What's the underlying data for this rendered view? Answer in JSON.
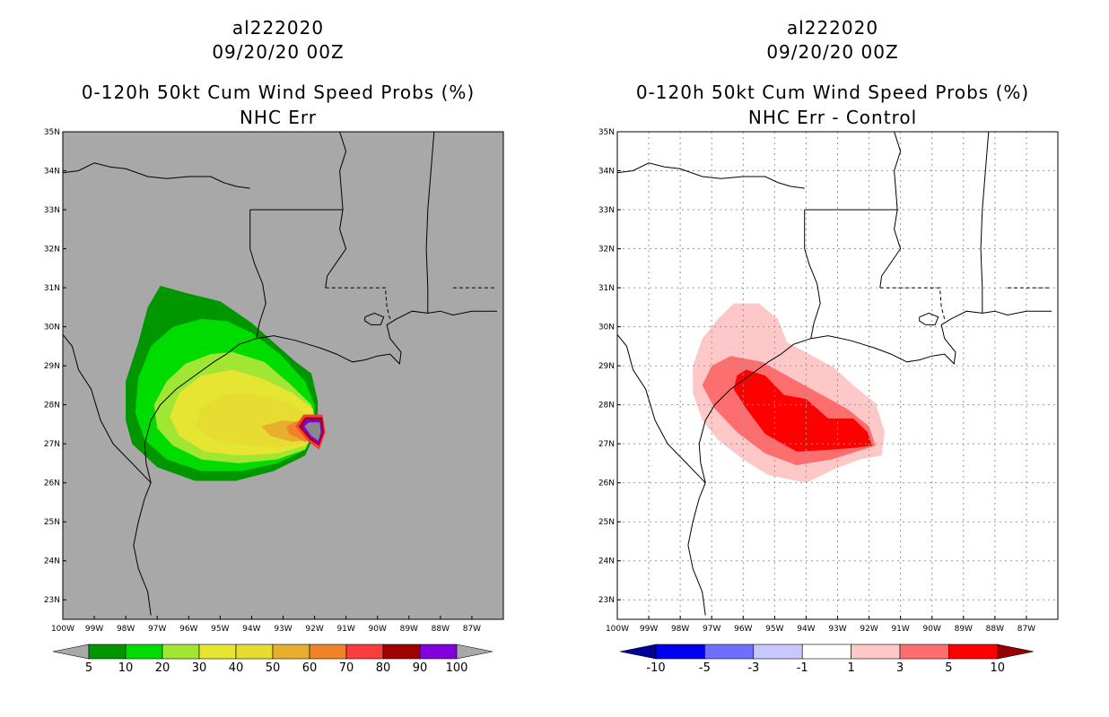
{
  "left_panel": {
    "storm_id": "al222020",
    "datetime": "09/20/20 00Z",
    "title": "0-120h 50kt Cum Wind Speed Probs (%)",
    "subtitle": "NHC Err",
    "background_color": "#a8a8a8",
    "colorbar": {
      "labels": [
        "5",
        "10",
        "20",
        "30",
        "40",
        "50",
        "60",
        "70",
        "80",
        "90",
        "100"
      ],
      "colors": [
        "#009600",
        "#00dc00",
        "#a0e632",
        "#e6e632",
        "#e6dc32",
        "#e6af2d",
        "#f08228",
        "#fa3c3c",
        "#a00000",
        "#8200dc"
      ],
      "end_colors": [
        "#a8a8a8",
        "#a8a8a8"
      ]
    }
  },
  "right_panel": {
    "storm_id": "al222020",
    "datetime": "09/20/20 00Z",
    "title": "0-120h 50kt Cum Wind Speed Probs (%)",
    "subtitle": "NHC Err - Control",
    "background_color": "#ffffff",
    "colorbar": {
      "labels": [
        "-10",
        "-5",
        "-3",
        "-1",
        "1",
        "3",
        "5",
        "10"
      ],
      "colors": [
        "#0000f0",
        "#6e6eff",
        "#c8c8ff",
        "#ffffff",
        "#ffc8c8",
        "#ff6e6e",
        "#ff0000"
      ],
      "end_colors": [
        "#000096",
        "#960000"
      ]
    }
  },
  "axes": {
    "lat_labels": [
      "35N",
      "34N",
      "33N",
      "32N",
      "31N",
      "30N",
      "29N",
      "28N",
      "27N",
      "26N",
      "25N",
      "24N",
      "23N"
    ],
    "lon_labels": [
      "100W",
      "99W",
      "98W",
      "97W",
      "96W",
      "95W",
      "94W",
      "93W",
      "92W",
      "91W",
      "90W",
      "89W",
      "88W",
      "87W"
    ]
  },
  "map_data": {
    "lat_range": [
      22.5,
      35
    ],
    "lon_range": [
      -100,
      -86
    ],
    "wind_prob_contours": [
      {
        "level": "5",
        "ring": [
          [
            -96.9,
            31.05
          ],
          [
            -96.0,
            30.85
          ],
          [
            -95.0,
            30.65
          ],
          [
            -94.0,
            30.1
          ],
          [
            -93.3,
            29.6
          ],
          [
            -92.6,
            29.1
          ],
          [
            -92.1,
            28.8
          ],
          [
            -91.9,
            28.1
          ],
          [
            -91.9,
            27.4
          ],
          [
            -92.3,
            26.7
          ],
          [
            -93.3,
            26.3
          ],
          [
            -94.5,
            26.05
          ],
          [
            -95.8,
            26.05
          ],
          [
            -97.0,
            26.4
          ],
          [
            -97.8,
            27.0
          ],
          [
            -98.0,
            27.6
          ],
          [
            -98.0,
            28.6
          ],
          [
            -97.6,
            29.6
          ],
          [
            -97.3,
            30.5
          ]
        ]
      },
      {
        "level": "10",
        "ring": [
          [
            -95.6,
            30.2
          ],
          [
            -94.8,
            30.15
          ],
          [
            -94.0,
            29.85
          ],
          [
            -93.1,
            29.3
          ],
          [
            -92.3,
            28.6
          ],
          [
            -92.0,
            28.0
          ],
          [
            -92.0,
            27.35
          ],
          [
            -92.4,
            26.8
          ],
          [
            -93.2,
            26.5
          ],
          [
            -94.3,
            26.3
          ],
          [
            -95.6,
            26.3
          ],
          [
            -96.7,
            26.6
          ],
          [
            -97.4,
            27.1
          ],
          [
            -97.7,
            27.8
          ],
          [
            -97.6,
            28.7
          ],
          [
            -97.2,
            29.5
          ],
          [
            -96.5,
            30.0
          ]
        ]
      },
      {
        "level": "20",
        "ring": [
          [
            -94.6,
            29.35
          ],
          [
            -93.6,
            29.1
          ],
          [
            -92.8,
            28.55
          ],
          [
            -92.1,
            28.0
          ],
          [
            -91.95,
            27.4
          ],
          [
            -92.3,
            26.85
          ],
          [
            -93.2,
            26.6
          ],
          [
            -94.4,
            26.5
          ],
          [
            -95.6,
            26.6
          ],
          [
            -96.5,
            26.95
          ],
          [
            -97.0,
            27.4
          ],
          [
            -97.1,
            28.0
          ],
          [
            -96.7,
            28.6
          ],
          [
            -96.1,
            29.05
          ],
          [
            -95.3,
            29.3
          ]
        ]
      },
      {
        "level": "30",
        "ring": [
          [
            -94.6,
            28.9
          ],
          [
            -93.6,
            28.65
          ],
          [
            -92.7,
            28.3
          ],
          [
            -92.05,
            27.9
          ],
          [
            -91.95,
            27.35
          ],
          [
            -92.3,
            26.95
          ],
          [
            -93.2,
            26.75
          ],
          [
            -94.4,
            26.7
          ],
          [
            -95.5,
            26.8
          ],
          [
            -96.3,
            27.2
          ],
          [
            -96.6,
            27.7
          ],
          [
            -96.3,
            28.3
          ],
          [
            -95.6,
            28.75
          ]
        ]
      },
      {
        "level": "40",
        "ring": [
          [
            -94.3,
            28.3
          ],
          [
            -93.4,
            28.2
          ],
          [
            -92.6,
            27.95
          ],
          [
            -92.05,
            27.65
          ],
          [
            -92.0,
            27.3
          ],
          [
            -92.3,
            27.0
          ],
          [
            -93.1,
            26.9
          ],
          [
            -94.2,
            26.95
          ],
          [
            -95.2,
            27.1
          ],
          [
            -95.8,
            27.45
          ],
          [
            -95.6,
            27.95
          ],
          [
            -94.9,
            28.25
          ]
        ]
      },
      {
        "level": "50",
        "ring": [
          [
            -93.0,
            27.6
          ],
          [
            -92.4,
            27.55
          ],
          [
            -92.05,
            27.4
          ],
          [
            -92.2,
            27.1
          ],
          [
            -92.7,
            27.05
          ],
          [
            -93.4,
            27.2
          ],
          [
            -93.7,
            27.45
          ]
        ]
      },
      {
        "level": "60",
        "ring": [
          [
            -92.5,
            27.6
          ],
          [
            -92.05,
            27.5
          ],
          [
            -91.95,
            27.2
          ],
          [
            -92.3,
            27.05
          ],
          [
            -92.8,
            27.25
          ],
          [
            -92.9,
            27.45
          ]
        ]
      },
      {
        "level": "70",
        "ring": [
          [
            -92.35,
            27.75
          ],
          [
            -91.75,
            27.75
          ],
          [
            -91.65,
            27.3
          ],
          [
            -91.85,
            26.85
          ],
          [
            -92.2,
            27.05
          ],
          [
            -92.6,
            27.45
          ]
        ]
      },
      {
        "level": "80",
        "ring": [
          [
            -92.3,
            27.68
          ],
          [
            -91.75,
            27.68
          ],
          [
            -91.7,
            27.3
          ],
          [
            -91.85,
            26.95
          ],
          [
            -92.15,
            27.1
          ],
          [
            -92.5,
            27.45
          ]
        ]
      },
      {
        "level": "90",
        "ring": [
          [
            -92.25,
            27.62
          ],
          [
            -91.8,
            27.62
          ],
          [
            -91.75,
            27.3
          ],
          [
            -91.87,
            27.0
          ],
          [
            -92.12,
            27.15
          ],
          [
            -92.42,
            27.45
          ]
        ]
      },
      {
        "level": "100",
        "ring": [
          [
            -92.18,
            27.55
          ],
          [
            -91.84,
            27.55
          ],
          [
            -91.8,
            27.3
          ],
          [
            -91.88,
            27.08
          ],
          [
            -92.1,
            27.2
          ],
          [
            -92.32,
            27.45
          ]
        ]
      }
    ],
    "diff_contours": [
      {
        "level": "1",
        "ring": [
          [
            -96.3,
            30.6
          ],
          [
            -95.5,
            30.6
          ],
          [
            -94.9,
            30.2
          ],
          [
            -94.6,
            29.6
          ],
          [
            -93.9,
            29.3
          ],
          [
            -93.1,
            28.95
          ],
          [
            -92.5,
            28.5
          ],
          [
            -91.8,
            28.05
          ],
          [
            -91.5,
            27.3
          ],
          [
            -91.6,
            26.7
          ],
          [
            -92.3,
            26.6
          ],
          [
            -93.1,
            26.35
          ],
          [
            -94.0,
            26.0
          ],
          [
            -95.2,
            26.2
          ],
          [
            -96.0,
            26.6
          ],
          [
            -96.8,
            27.1
          ],
          [
            -97.3,
            27.6
          ],
          [
            -97.6,
            28.3
          ],
          [
            -97.6,
            29.0
          ],
          [
            -97.3,
            29.7
          ],
          [
            -96.8,
            30.2
          ]
        ]
      },
      {
        "level": "3",
        "ring": [
          [
            -96.4,
            29.25
          ],
          [
            -95.4,
            29.1
          ],
          [
            -94.5,
            28.7
          ],
          [
            -93.6,
            28.3
          ],
          [
            -92.7,
            27.9
          ],
          [
            -92.0,
            27.45
          ],
          [
            -91.8,
            26.95
          ],
          [
            -92.4,
            26.8
          ],
          [
            -93.2,
            26.6
          ],
          [
            -94.3,
            26.45
          ],
          [
            -95.3,
            26.75
          ],
          [
            -96.2,
            27.3
          ],
          [
            -96.9,
            27.9
          ],
          [
            -97.3,
            28.5
          ],
          [
            -97.0,
            29.0
          ]
        ]
      },
      {
        "level": "5",
        "ring": [
          [
            -95.9,
            28.9
          ],
          [
            -95.3,
            28.75
          ],
          [
            -94.7,
            28.25
          ],
          [
            -94.0,
            28.15
          ],
          [
            -93.3,
            27.65
          ],
          [
            -92.5,
            27.65
          ],
          [
            -92.05,
            27.3
          ],
          [
            -91.9,
            26.95
          ],
          [
            -92.4,
            26.9
          ],
          [
            -93.2,
            26.85
          ],
          [
            -94.3,
            26.8
          ],
          [
            -95.3,
            27.25
          ],
          [
            -95.9,
            27.9
          ],
          [
            -96.3,
            28.4
          ],
          [
            -96.2,
            28.75
          ]
        ]
      }
    ]
  }
}
